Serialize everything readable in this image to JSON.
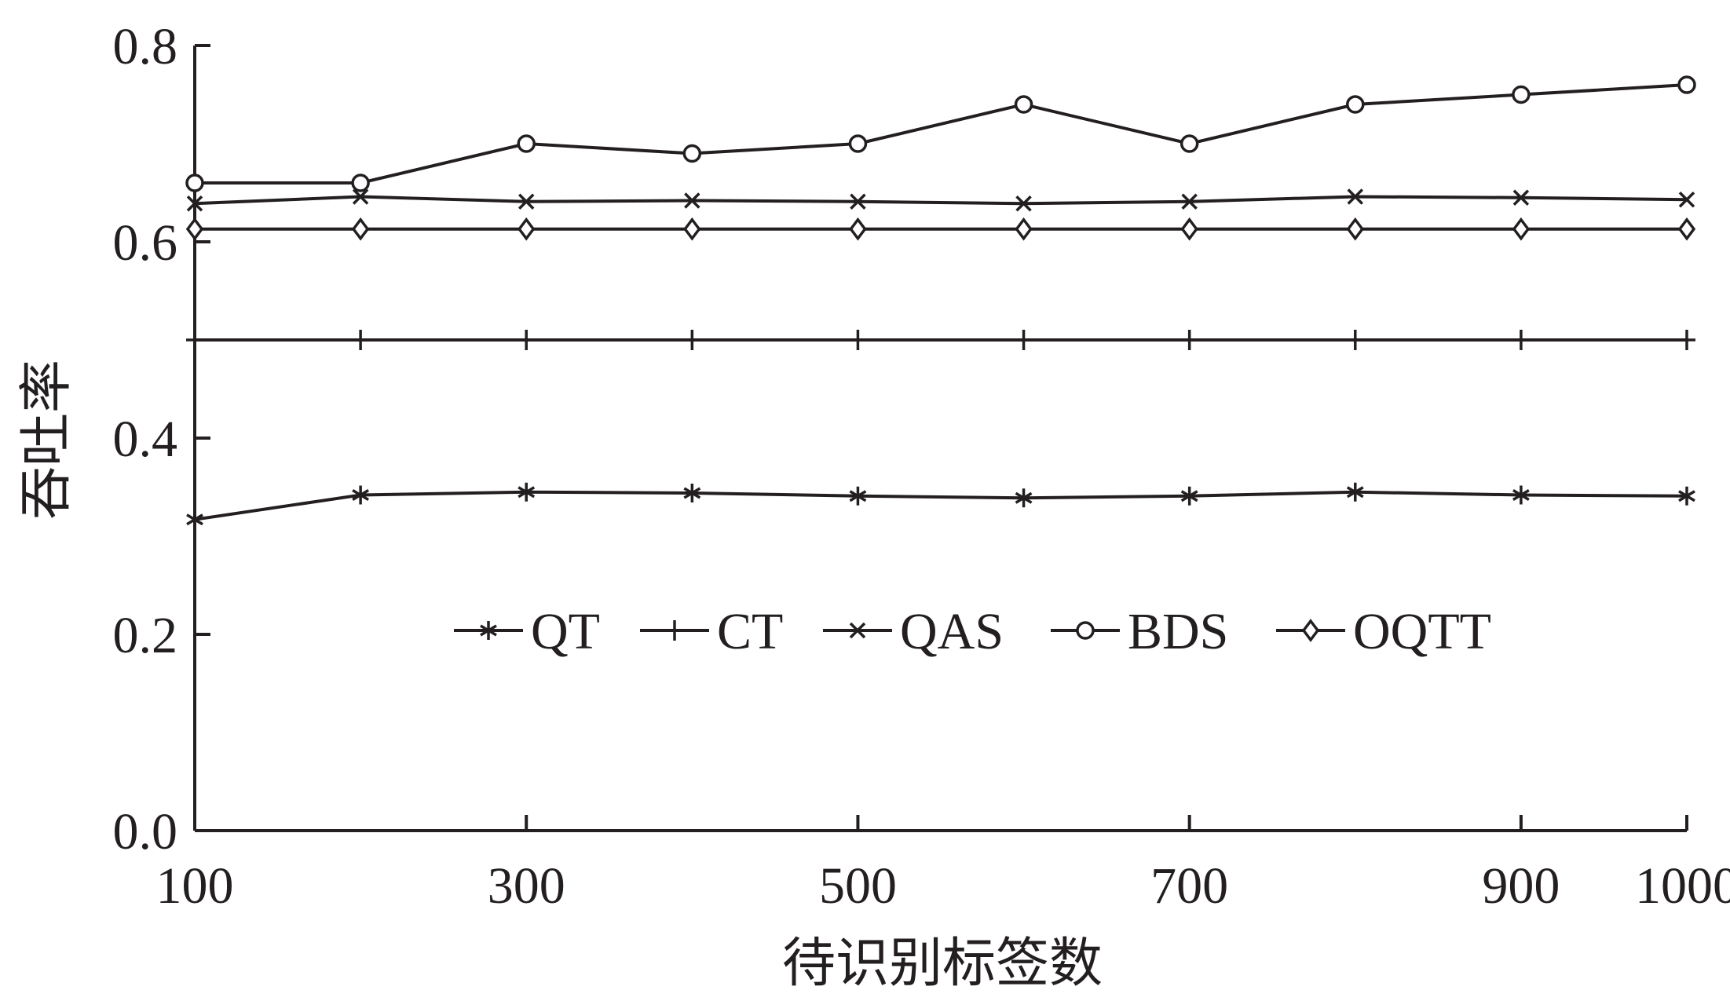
{
  "chart_data": {
    "type": "line",
    "xlabel": "待识别标签数",
    "ylabel": "吞吐率",
    "xlim": [
      100,
      1000
    ],
    "ylim": [
      0.0,
      0.8
    ],
    "x": [
      100,
      200,
      300,
      400,
      500,
      600,
      700,
      800,
      900,
      1000
    ],
    "x_tick_labels": [
      "100",
      "300",
      "500",
      "700",
      "900",
      "1000"
    ],
    "x_tick_positions": [
      100,
      300,
      500,
      700,
      900,
      1000
    ],
    "y_tick_labels": [
      "0.0",
      "0.2",
      "0.4",
      "0.6",
      "0.8"
    ],
    "y_tick_positions": [
      0.0,
      0.2,
      0.4,
      0.6,
      0.8
    ],
    "grid": false,
    "legend_position": "center",
    "series": [
      {
        "name": "QT",
        "marker": "asterisk",
        "values": [
          0.317,
          0.342,
          0.345,
          0.344,
          0.341,
          0.339,
          0.341,
          0.345,
          0.342,
          0.341
        ]
      },
      {
        "name": "CT",
        "marker": "plus",
        "values": [
          0.5,
          0.5,
          0.5,
          0.5,
          0.5,
          0.5,
          0.5,
          0.5,
          0.5,
          0.5
        ]
      },
      {
        "name": "QAS",
        "marker": "cross",
        "values": [
          0.639,
          0.646,
          0.641,
          0.642,
          0.641,
          0.639,
          0.641,
          0.646,
          0.645,
          0.643
        ]
      },
      {
        "name": "BDS",
        "marker": "circle",
        "values": [
          0.66,
          0.66,
          0.7,
          0.69,
          0.7,
          0.74,
          0.7,
          0.74,
          0.75,
          0.76
        ]
      },
      {
        "name": "OQTT",
        "marker": "diamond",
        "values": [
          0.613,
          0.613,
          0.613,
          0.613,
          0.613,
          0.613,
          0.613,
          0.613,
          0.613,
          0.613
        ]
      }
    ],
    "colors": {
      "line": "#231f20",
      "background": "#ffffff"
    }
  }
}
